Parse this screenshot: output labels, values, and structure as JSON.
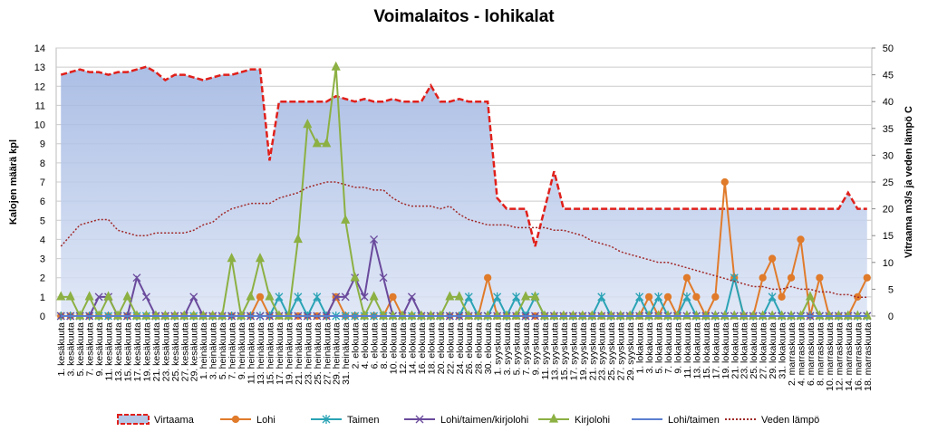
{
  "chart_data": {
    "type": "line",
    "title": "Voimalaitos - lohikalat",
    "y_label": "Kalojen määrä kpl",
    "y2_label": "Vitraama m3/s  ja veden lämpö C",
    "categories": [
      "1. kesäkuuta",
      "3. kesäkuuta",
      "5. kesäkuuta",
      "7. kesäkuuta",
      "9. kesäkuuta",
      "11. kesäkuuta",
      "13. kesäkuuta",
      "15. kesäkuuta",
      "17. kesäkuuta",
      "19. kesäkuuta",
      "21. kesäkuuta",
      "23. kesäkuuta",
      "25. kesäkuuta",
      "27. kesäkuuta",
      "29. kesäkuuta",
      "1. heinäkuuta",
      "3. heinäkuuta",
      "5. heinäkuuta",
      "7. heinäkuuta",
      "9. heinäkuuta",
      "11. heinäkuuta",
      "13. heinäkuuta",
      "15. heinäkuuta",
      "17. heinäkuuta",
      "19. heinäkuuta",
      "21. heinäkuuta",
      "23. heinäkuuta",
      "25. heinäkuuta",
      "27. heinäkuuta",
      "29. heinäkuuta",
      "31. heinäkuuta",
      "2. elokuuta",
      "4. elokuuta",
      "6. elokuuta",
      "8. elokuuta",
      "10. elokuuta",
      "12. elokuuta",
      "14. elokuuta",
      "16. elokuuta",
      "18. elokuuta",
      "20. elokuuta",
      "22. elokuuta",
      "24. elokuuta",
      "26. elokuuta",
      "28. elokuuta",
      "30. elokuuta",
      "1. syyskuuta",
      "3. syyskuuta",
      "5. syyskuuta",
      "7. syyskuuta",
      "9. syyskuuta",
      "11. syyskuuta",
      "13. syyskuuta",
      "15. syyskuuta",
      "17. syyskuuta",
      "19. syyskuuta",
      "21. syyskuuta",
      "23. syyskuuta",
      "25. syyskuuta",
      "27. syyskuuta",
      "29. syyskuuta",
      "1. lokakuuta",
      "3. lokakuuta",
      "5. lokakuuta",
      "7. lokakuuta",
      "9. lokakuuta",
      "11. lokakuuta",
      "13. lokakuuta",
      "15. lokakuuta",
      "17. lokakuuta",
      "19. lokakuuta",
      "21. lokakuuta",
      "23. lokakuuta",
      "25. lokakuuta",
      "27. lokakuuta",
      "29. lokakuuta",
      "31. lokakuuta",
      "2. marraskuuta",
      "4. marraskuuta",
      "6. marraskuuta",
      "8. marraskuuta",
      "10. marraskuuta",
      "12. marraskuuta",
      "14. marraskuuta",
      "16. marraskuuta",
      "18. marraskuuta"
    ],
    "ylim": [
      0,
      14
    ],
    "yticks": [
      0,
      1,
      2,
      3,
      4,
      5,
      6,
      7,
      8,
      9,
      10,
      11,
      12,
      13,
      14
    ],
    "y2lim": [
      0,
      50
    ],
    "y2ticks": [
      0,
      5,
      10,
      15,
      20,
      25,
      30,
      35,
      40,
      45,
      50
    ],
    "series": [
      {
        "name": "Virtaama",
        "color": "#e0201b",
        "axis": "y2",
        "line": "dashed",
        "area": true,
        "values": [
          45,
          45.5,
          46,
          45.5,
          45.5,
          45,
          45.5,
          45.5,
          46,
          46.5,
          45.5,
          44,
          45,
          45,
          44.5,
          44,
          44.5,
          45,
          45,
          45.5,
          46,
          46,
          29,
          40,
          40,
          40,
          40,
          40,
          40,
          41,
          40.5,
          40,
          40.5,
          40,
          40,
          40.5,
          40,
          40,
          40,
          43,
          40,
          40,
          40.5,
          40,
          40,
          40,
          22,
          20,
          20,
          20,
          13,
          20,
          27,
          20,
          20,
          20,
          20,
          20,
          20,
          20,
          20,
          20,
          20,
          20,
          20,
          20,
          20,
          20,
          20,
          20,
          20,
          20,
          20,
          20,
          20,
          20,
          20,
          20,
          20,
          20,
          20,
          20,
          20,
          23,
          20,
          20
        ]
      },
      {
        "name": "Lohi",
        "color": "#e07b2b",
        "axis": "y",
        "marker": "circle",
        "values": [
          0,
          0,
          0,
          0,
          0,
          0,
          0,
          0,
          0,
          0,
          0,
          0,
          0,
          0,
          0,
          0,
          0,
          0,
          0,
          0,
          0,
          1,
          0,
          0,
          0,
          0,
          0,
          0,
          0,
          1,
          0,
          0,
          0,
          0,
          0,
          1,
          0,
          0,
          0,
          0,
          0,
          0,
          0,
          0,
          0,
          2,
          0,
          0,
          0,
          0,
          0,
          0,
          0,
          0,
          0,
          0,
          0,
          0,
          0,
          0,
          0,
          0,
          1,
          0,
          1,
          0,
          2,
          1,
          0,
          1,
          7,
          2,
          0,
          0,
          2,
          3,
          1,
          2,
          4,
          0,
          2,
          0,
          0,
          0,
          1,
          2
        ]
      },
      {
        "name": "Taimen",
        "color": "#2aa3b5",
        "axis": "y",
        "marker": "star",
        "values": [
          0,
          0,
          0,
          0,
          0,
          0,
          0,
          0,
          0,
          0,
          0,
          0,
          0,
          0,
          0,
          0,
          0,
          0,
          0,
          0,
          0,
          0,
          0,
          1,
          0,
          1,
          0,
          1,
          0,
          0,
          0,
          0,
          0,
          0,
          0,
          0,
          0,
          0,
          0,
          0,
          0,
          0,
          0,
          1,
          0,
          0,
          1,
          0,
          1,
          0,
          1,
          0,
          0,
          0,
          0,
          0,
          0,
          1,
          0,
          0,
          0,
          1,
          0,
          1,
          0,
          0,
          1,
          0,
          0,
          0,
          0,
          2,
          0,
          0,
          0,
          1,
          0,
          0,
          0,
          0,
          0,
          0,
          0,
          0,
          0,
          0
        ]
      },
      {
        "name": "Lohi/taimen/kirjolohi",
        "color": "#6a4a9c",
        "axis": "y",
        "marker": "x",
        "values": [
          0,
          0,
          0,
          0,
          1,
          1,
          0,
          0,
          2,
          1,
          0,
          0,
          0,
          0,
          1,
          0,
          0,
          0,
          0,
          0,
          0,
          0,
          0,
          0,
          0,
          0,
          0,
          0,
          0,
          1,
          1,
          2,
          1,
          4,
          2,
          0,
          0,
          1,
          0,
          0,
          0,
          0,
          0,
          0,
          0,
          0,
          0,
          0,
          0,
          0,
          0,
          0,
          0,
          0,
          0,
          0,
          0,
          0,
          0,
          0,
          0,
          0,
          0,
          0,
          0,
          0,
          0,
          0,
          0,
          0,
          0,
          0,
          0,
          0,
          0,
          0,
          0,
          0,
          0,
          0,
          0,
          0,
          0,
          0,
          0,
          0
        ]
      },
      {
        "name": "Kirjolohi",
        "color": "#8cb043",
        "axis": "y",
        "marker": "triangle",
        "values": [
          1,
          1,
          0,
          1,
          0,
          1,
          0,
          1,
          0,
          0,
          0,
          0,
          0,
          0,
          0,
          0,
          0,
          0,
          3,
          0,
          1,
          3,
          1,
          0,
          0,
          4,
          10,
          9,
          9,
          13,
          5,
          2,
          0,
          1,
          0,
          0,
          0,
          0,
          0,
          0,
          0,
          1,
          1,
          0,
          0,
          0,
          0,
          0,
          0,
          1,
          1,
          0,
          0,
          0,
          0,
          0,
          0,
          0,
          0,
          0,
          0,
          0,
          0,
          0,
          0,
          0,
          0,
          0,
          0,
          0,
          0,
          0,
          0,
          0,
          0,
          0,
          0,
          0,
          0,
          1,
          0,
          0,
          0,
          0,
          0,
          0
        ]
      },
      {
        "name": "Lohi/taimen",
        "color": "#5b7fd0",
        "axis": "y",
        "values": [
          0,
          0,
          0,
          0,
          0,
          0,
          0,
          0,
          0,
          0,
          0,
          0,
          0,
          0,
          0,
          0,
          0,
          0,
          0,
          0,
          0,
          0,
          0,
          0,
          0,
          0,
          0,
          0,
          0,
          0,
          0,
          0,
          0,
          0,
          0,
          0,
          0,
          0,
          0,
          0,
          0,
          0,
          0,
          0,
          0,
          0,
          0,
          0,
          0,
          0,
          0,
          0,
          0,
          0,
          0,
          0,
          0,
          0,
          0,
          0,
          0,
          0,
          0,
          0,
          0,
          0,
          0,
          0,
          0,
          0,
          0,
          0,
          0,
          0,
          0,
          0,
          0,
          0,
          0,
          0,
          0,
          0,
          0,
          0,
          0,
          0
        ]
      },
      {
        "name": "Veden lämpö",
        "color": "#a02a2a",
        "axis": "y2",
        "line": "dotted",
        "values": [
          13,
          15,
          17,
          17.5,
          18,
          18,
          16,
          15.5,
          15,
          15,
          15.5,
          15.5,
          15.5,
          15.5,
          16,
          17,
          17.5,
          19,
          20,
          20.5,
          21,
          21,
          21,
          22,
          22.5,
          23,
          24,
          24.5,
          25,
          25,
          24.5,
          24,
          24,
          23.5,
          23.5,
          22,
          21,
          20.5,
          20.5,
          20.5,
          20,
          20.5,
          19,
          18,
          17.5,
          17,
          17,
          17,
          16.5,
          16.5,
          16.5,
          16.5,
          16,
          16,
          15.5,
          15,
          14,
          13.5,
          13,
          12,
          11.5,
          11,
          10.5,
          10,
          10,
          9.5,
          9,
          8.5,
          8,
          7.5,
          7,
          6.5,
          6,
          5.5,
          5.5,
          5,
          5,
          5.5,
          5,
          5,
          4.5,
          4.5,
          4,
          4,
          3.5,
          3.5
        ]
      }
    ],
    "grid": true
  }
}
